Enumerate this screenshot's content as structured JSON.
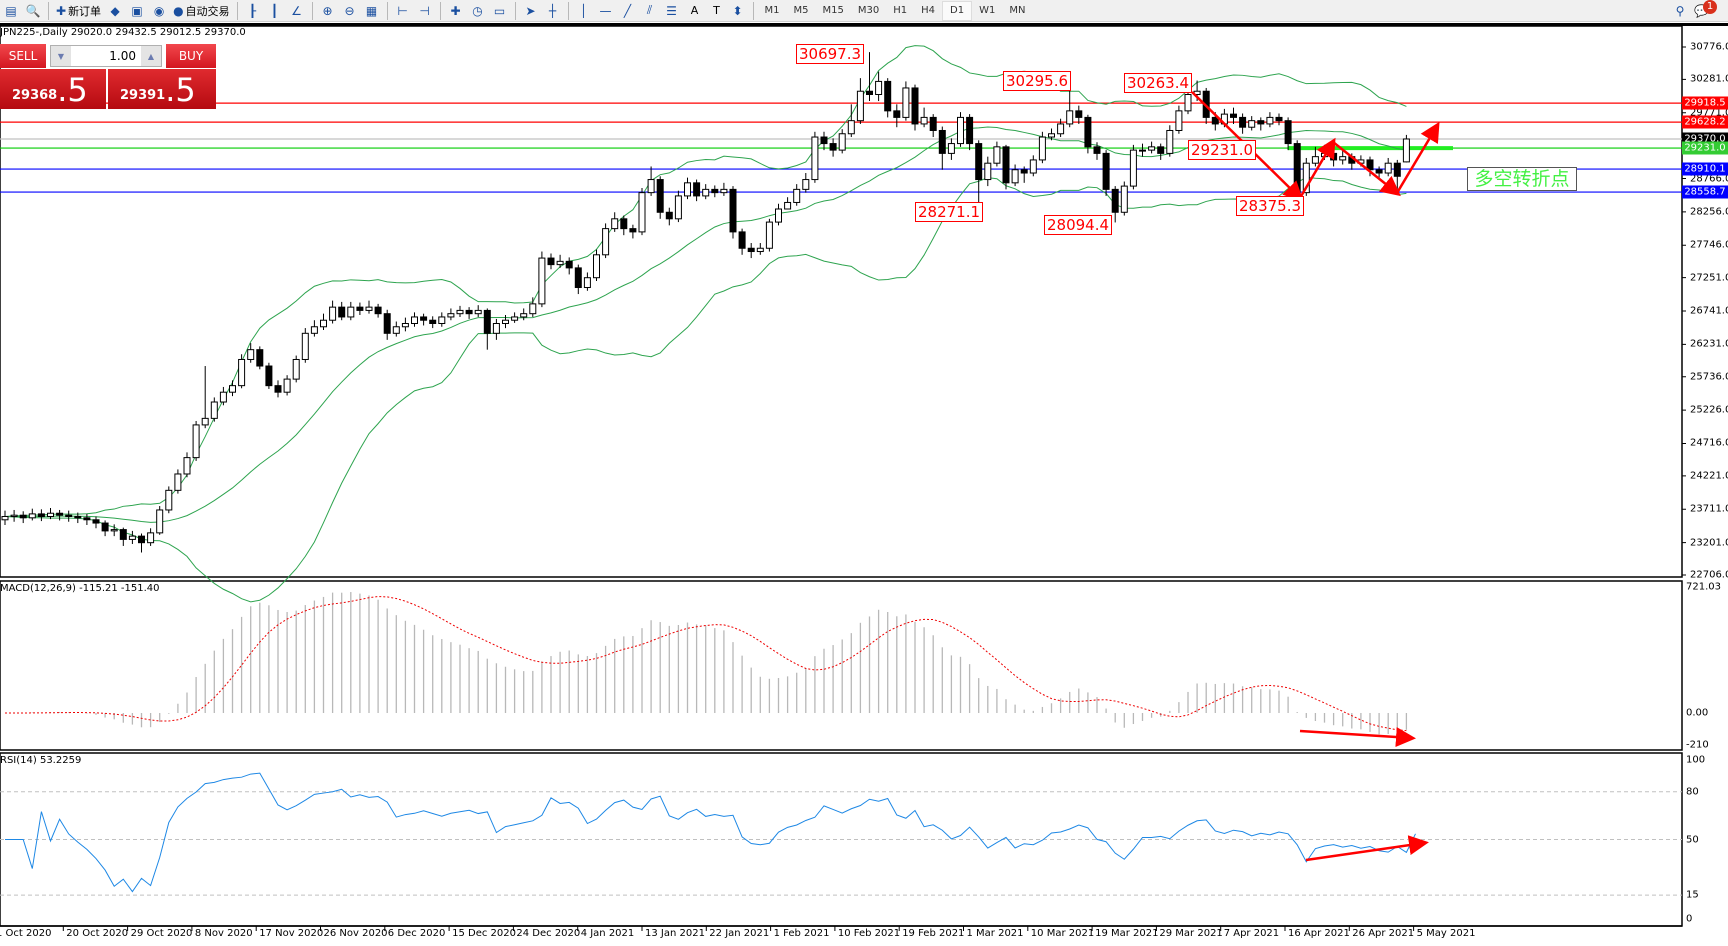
{
  "toolbar": {
    "items": [
      {
        "icon": "new-chart-icon",
        "label": ""
      },
      {
        "icon": "zoom-window-icon",
        "label": ""
      },
      {
        "icon": "new-order-icon",
        "label": "新订单"
      },
      {
        "icon": "metaeditor-icon",
        "label": ""
      },
      {
        "icon": "terminal-icon",
        "label": ""
      },
      {
        "icon": "signals-icon",
        "label": ""
      },
      {
        "icon": "auto-trading-icon",
        "label": "自动交易"
      },
      {
        "icon": "bar-chart-icon",
        "label": ""
      },
      {
        "icon": "candlestick-icon",
        "label": ""
      },
      {
        "icon": "line-chart-icon",
        "label": ""
      },
      {
        "icon": "zoom-in-icon",
        "label": ""
      },
      {
        "icon": "zoom-out-icon",
        "label": ""
      },
      {
        "icon": "tile-windows-icon",
        "label": ""
      },
      {
        "icon": "chart-shift-icon",
        "label": ""
      },
      {
        "icon": "autoscroll-icon",
        "label": ""
      },
      {
        "icon": "indicators-icon",
        "label": ""
      },
      {
        "icon": "periods-icon",
        "label": ""
      },
      {
        "icon": "templates-icon",
        "label": ""
      },
      {
        "icon": "cursor-icon",
        "label": ""
      },
      {
        "icon": "crosshair-icon",
        "label": ""
      },
      {
        "icon": "vertical-line-icon",
        "label": ""
      },
      {
        "icon": "horizontal-line-icon",
        "label": ""
      },
      {
        "icon": "trendline-icon",
        "label": ""
      },
      {
        "icon": "equidistant-channel-icon",
        "label": ""
      },
      {
        "icon": "fibonacci-icon",
        "label": ""
      },
      {
        "icon": "text-icon",
        "label": "A"
      },
      {
        "icon": "text-label-icon",
        "label": "T"
      },
      {
        "icon": "arrows-icon",
        "label": ""
      }
    ],
    "timeframes": [
      "M1",
      "M5",
      "M15",
      "M30",
      "H1",
      "H4",
      "D1",
      "W1",
      "MN"
    ],
    "active_timeframe": "D1",
    "notification_count": "1"
  },
  "chart": {
    "title": "JPN225-,Daily  29020.0 29432.5 29012.5 29370.0",
    "trade_panel": {
      "sell_label": "SELL",
      "buy_label": "BUY",
      "volume": "1.00",
      "sell_main": "29368",
      "sell_frac": ".5",
      "buy_main": "29391",
      "buy_frac": ".5"
    }
  },
  "chart_data": {
    "type": "candlestick",
    "symbol": "JPN225-",
    "timeframe": "Daily",
    "ohlc": [
      [
        23550,
        23690,
        23470,
        23600
      ],
      [
        23600,
        23700,
        23520,
        23620
      ],
      [
        23620,
        23680,
        23500,
        23580
      ],
      [
        23580,
        23720,
        23540,
        23640
      ],
      [
        23640,
        23710,
        23530,
        23600
      ],
      [
        23600,
        23730,
        23560,
        23650
      ],
      [
        23650,
        23700,
        23540,
        23620
      ],
      [
        23620,
        23690,
        23520,
        23600
      ],
      [
        23600,
        23660,
        23500,
        23580
      ],
      [
        23580,
        23640,
        23470,
        23550
      ],
      [
        23550,
        23600,
        23420,
        23500
      ],
      [
        23500,
        23540,
        23300,
        23380
      ],
      [
        23380,
        23480,
        23300,
        23400
      ],
      [
        23400,
        23430,
        23150,
        23250
      ],
      [
        23250,
        23380,
        23180,
        23300
      ],
      [
        23300,
        23340,
        23050,
        23200
      ],
      [
        23200,
        23420,
        23150,
        23350
      ],
      [
        23350,
        23760,
        23320,
        23700
      ],
      [
        23700,
        24060,
        23650,
        24000
      ],
      [
        24000,
        24320,
        23950,
        24250
      ],
      [
        24250,
        24580,
        24200,
        24500
      ],
      [
        24500,
        25060,
        24450,
        25000
      ],
      [
        25000,
        25900,
        24950,
        25100
      ],
      [
        25100,
        25420,
        25050,
        25350
      ],
      [
        25350,
        25580,
        25300,
        25500
      ],
      [
        25500,
        25680,
        25440,
        25600
      ],
      [
        25600,
        26080,
        25560,
        26000
      ],
      [
        26000,
        26250,
        25950,
        26150
      ],
      [
        26150,
        26200,
        25850,
        25900
      ],
      [
        25900,
        25950,
        25550,
        25600
      ],
      [
        25600,
        25680,
        25420,
        25500
      ],
      [
        25500,
        25760,
        25450,
        25700
      ],
      [
        25700,
        26060,
        25650,
        26000
      ],
      [
        26000,
        26480,
        25950,
        26400
      ],
      [
        26400,
        26600,
        26350,
        26500
      ],
      [
        26500,
        26700,
        26450,
        26600
      ],
      [
        26600,
        26900,
        26550,
        26800
      ],
      [
        26800,
        26880,
        26600,
        26650
      ],
      [
        26650,
        26880,
        26600,
        26800
      ],
      [
        26800,
        26870,
        26680,
        26750
      ],
      [
        26750,
        26900,
        26700,
        26800
      ],
      [
        26800,
        26850,
        26640,
        26700
      ],
      [
        26700,
        26760,
        26300,
        26400
      ],
      [
        26400,
        26580,
        26350,
        26500
      ],
      [
        26500,
        26640,
        26430,
        26550
      ],
      [
        26550,
        26720,
        26500,
        26650
      ],
      [
        26650,
        26700,
        26520,
        26600
      ],
      [
        26600,
        26660,
        26480,
        26550
      ],
      [
        26550,
        26720,
        26500,
        26650
      ],
      [
        26650,
        26780,
        26600,
        26700
      ],
      [
        26700,
        26820,
        26650,
        26750
      ],
      [
        26750,
        26800,
        26620,
        26700
      ],
      [
        26700,
        26830,
        26650,
        26750
      ],
      [
        26750,
        26780,
        26150,
        26400
      ],
      [
        26400,
        26620,
        26300,
        26550
      ],
      [
        26550,
        26680,
        26480,
        26600
      ],
      [
        26600,
        26720,
        26560,
        26650
      ],
      [
        26650,
        26780,
        26600,
        26700
      ],
      [
        26700,
        26950,
        26650,
        26850
      ],
      [
        26850,
        27650,
        26800,
        27550
      ],
      [
        27550,
        27620,
        27380,
        27450
      ],
      [
        27450,
        27600,
        27400,
        27500
      ],
      [
        27500,
        27560,
        27300,
        27400
      ],
      [
        27400,
        27450,
        27000,
        27100
      ],
      [
        27100,
        27330,
        27050,
        27250
      ],
      [
        27250,
        27680,
        27200,
        27600
      ],
      [
        27600,
        28080,
        27550,
        28000
      ],
      [
        28000,
        28250,
        27950,
        28150
      ],
      [
        28150,
        28200,
        27900,
        28000
      ],
      [
        28000,
        28060,
        27850,
        27950
      ],
      [
        27950,
        28620,
        27900,
        28550
      ],
      [
        28550,
        28950,
        28500,
        28750
      ],
      [
        28750,
        28800,
        28150,
        28250
      ],
      [
        28250,
        28320,
        28050,
        28150
      ],
      [
        28150,
        28580,
        28100,
        28500
      ],
      [
        28500,
        28780,
        28450,
        28700
      ],
      [
        28700,
        28750,
        28420,
        28500
      ],
      [
        28500,
        28680,
        28450,
        28600
      ],
      [
        28600,
        28660,
        28480,
        28550
      ],
      [
        28550,
        28700,
        28500,
        28600
      ],
      [
        28600,
        28650,
        27850,
        27950
      ],
      [
        27950,
        28000,
        27600,
        27700
      ],
      [
        27700,
        27780,
        27550,
        27650
      ],
      [
        27650,
        27780,
        27600,
        27700
      ],
      [
        27700,
        28150,
        27650,
        28100
      ],
      [
        28100,
        28380,
        28050,
        28300
      ],
      [
        28300,
        28480,
        28300,
        28400
      ],
      [
        28400,
        28680,
        28350,
        28600
      ],
      [
        28600,
        28850,
        28550,
        28750
      ],
      [
        28750,
        29480,
        28700,
        29400
      ],
      [
        29400,
        29480,
        29200,
        29300
      ],
      [
        29300,
        29380,
        29100,
        29200
      ],
      [
        29200,
        29520,
        29150,
        29450
      ],
      [
        29450,
        29900,
        29400,
        29650
      ],
      [
        29650,
        30300,
        29600,
        30100
      ],
      [
        30100,
        30697.3,
        29950,
        30050
      ],
      [
        30050,
        30400,
        29950,
        30250
      ],
      [
        30250,
        30300,
        29700,
        29800
      ],
      [
        29800,
        29900,
        29550,
        29700
      ],
      [
        29700,
        30250,
        29650,
        30150
      ],
      [
        30150,
        30200,
        29500,
        29600
      ],
      [
        29600,
        29850,
        29550,
        29700
      ],
      [
        29700,
        29750,
        29400,
        29500
      ],
      [
        29500,
        29560,
        28900,
        29150
      ],
      [
        29150,
        29380,
        29050,
        29300
      ],
      [
        29300,
        29780,
        29250,
        29700
      ],
      [
        29700,
        29750,
        29200,
        29300
      ],
      [
        29300,
        29350,
        28271.1,
        28750
      ],
      [
        28750,
        29100,
        28650,
        29000
      ],
      [
        29000,
        29330,
        28950,
        29250
      ],
      [
        29250,
        29280,
        28600,
        28700
      ],
      [
        28700,
        28980,
        28650,
        28900
      ],
      [
        28900,
        28950,
        28700,
        28850
      ],
      [
        28850,
        29120,
        28800,
        29050
      ],
      [
        29050,
        29480,
        29000,
        29400
      ],
      [
        29400,
        29530,
        29350,
        29450
      ],
      [
        29450,
        29680,
        29400,
        29600
      ],
      [
        29600,
        30295.6,
        29550,
        29800
      ],
      [
        29800,
        29880,
        29600,
        29700
      ],
      [
        29700,
        29740,
        29150,
        29250
      ],
      [
        29250,
        29320,
        29050,
        29150
      ],
      [
        29150,
        29200,
        28500,
        28600
      ],
      [
        28600,
        28650,
        28094.4,
        28250
      ],
      [
        28250,
        28720,
        28200,
        28650
      ],
      [
        28650,
        29280,
        28600,
        29200
      ],
      [
        29200,
        29300,
        29100,
        29200
      ],
      [
        29200,
        29330,
        29150,
        29250
      ],
      [
        29250,
        29300,
        29050,
        29150
      ],
      [
        29150,
        29580,
        29100,
        29500
      ],
      [
        29500,
        29880,
        29450,
        29800
      ],
      [
        29800,
        30150,
        29750,
        30050
      ],
      [
        30050,
        30263.4,
        29950,
        30100
      ],
      [
        30100,
        30150,
        29600,
        29700
      ],
      [
        29700,
        29780,
        29500,
        29600
      ],
      [
        29600,
        29830,
        29550,
        29750
      ],
      [
        29750,
        29850,
        29600,
        29700
      ],
      [
        29700,
        29760,
        29450,
        29550
      ],
      [
        29550,
        29720,
        29500,
        29650
      ],
      [
        29650,
        29700,
        29500,
        29600
      ],
      [
        29600,
        29780,
        29550,
        29700
      ],
      [
        29700,
        29760,
        29580,
        29650
      ],
      [
        29650,
        29700,
        29200,
        29300
      ],
      [
        29300,
        29350,
        28375.3,
        28550
      ],
      [
        28550,
        29080,
        28500,
        29000
      ],
      [
        29000,
        29250,
        28950,
        29100
      ],
      [
        29100,
        29280,
        29050,
        29150
      ],
      [
        29150,
        29200,
        28950,
        29050
      ],
      [
        29050,
        29200,
        28980,
        29100
      ],
      [
        29100,
        29150,
        28900,
        29000
      ],
      [
        29000,
        29120,
        28950,
        29050
      ],
      [
        29050,
        29100,
        28800,
        28900
      ],
      [
        28900,
        28950,
        28750,
        28850
      ],
      [
        28850,
        29080,
        28800,
        29000
      ],
      [
        29000,
        29050,
        28550,
        28800
      ],
      [
        29020,
        29432.5,
        29012.5,
        29370
      ]
    ],
    "price_ticks": [
      30776.0,
      30281.0,
      29771.0,
      28766.0,
      28256.0,
      27746.0,
      27251.0,
      26741.0,
      26231.0,
      25736.0,
      25226.0,
      24716.0,
      24221.0,
      23711.0,
      23201.0,
      22706.0
    ],
    "price_range": [
      22706.0,
      30776.0
    ],
    "date_labels": [
      "1 Oct 2020",
      "20 Oct 2020",
      "29 Oct 2020",
      "8 Nov 2020",
      "17 Nov 2020",
      "26 Nov 2020",
      "6 Dec 2020",
      "15 Dec 2020",
      "24 Dec 2020",
      "4 Jan 2021",
      "13 Jan 2021",
      "22 Jan 2021",
      "1 Feb 2021",
      "10 Feb 2021",
      "19 Feb 2021",
      "1 Mar 2021",
      "10 Mar 2021",
      "19 Mar 2021",
      "29 Mar 2021",
      "7 Apr 2021",
      "16 Apr 2021",
      "26 Apr 2021",
      "5 May 2021"
    ],
    "bollinger": {
      "period": 20,
      "deviations": 2,
      "color": "#2ea44f"
    },
    "horizontal_lines": [
      {
        "price": 29918.5,
        "label": "29918.5",
        "color": "#ff0000"
      },
      {
        "price": 29628.2,
        "label": "29628.2",
        "color": "#ff0000"
      },
      {
        "price": 29370.0,
        "label": "29370.0",
        "color": "#c0c0c0",
        "tag_color": "#000000"
      },
      {
        "price": 29231.0,
        "label": "29231.0",
        "color": "#00cc00",
        "tag_color": "#33cc33"
      },
      {
        "price": 28910.1,
        "label": "28910.1",
        "color": "#0000ff"
      },
      {
        "price": 28558.7,
        "label": "28558.7",
        "color": "#0000ff"
      }
    ],
    "annotations": [
      "30697.3",
      "30295.6",
      "30263.4",
      "29231.0",
      "28271.1",
      "28094.4",
      "28375.3"
    ],
    "note": "多空转折点",
    "macd": {
      "label": "MACD(12,26,9) -115.21 -151.40",
      "fast": 12,
      "slow": 26,
      "signal": 9,
      "ticks": [
        "721.03",
        "0.00",
        "-210"
      ],
      "range": [
        -210,
        721.03
      ]
    },
    "rsi": {
      "label": "RSI(14) 53.2259",
      "period": 14,
      "ticks": [
        "100",
        "80",
        "50",
        "15",
        "0"
      ],
      "levels": [
        80,
        50,
        15
      ]
    }
  }
}
